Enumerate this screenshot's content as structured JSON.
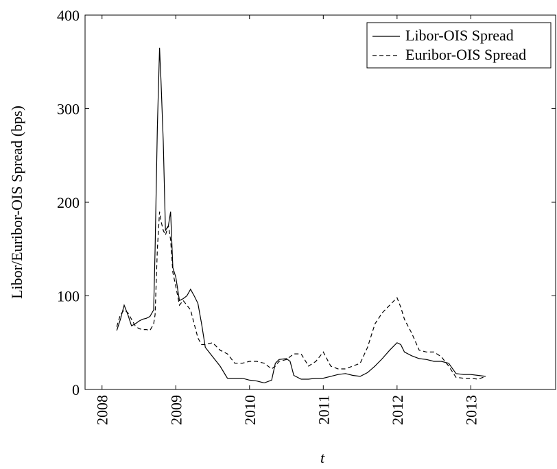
{
  "chart_data": {
    "type": "line",
    "xlabel": "t",
    "ylabel": "Libor/Euribor-OIS Spread (bps)",
    "x": [
      2008.2,
      2008.25,
      2008.3,
      2008.35,
      2008.4,
      2008.45,
      2008.5,
      2008.55,
      2008.6,
      2008.65,
      2008.7,
      2008.72,
      2008.75,
      2008.78,
      2008.8,
      2008.83,
      2008.86,
      2008.9,
      2008.93,
      2008.96,
      2009.0,
      2009.05,
      2009.1,
      2009.15,
      2009.2,
      2009.25,
      2009.3,
      2009.35,
      2009.4,
      2009.5,
      2009.6,
      2009.7,
      2009.8,
      2009.9,
      2010.0,
      2010.1,
      2010.2,
      2010.3,
      2010.35,
      2010.4,
      2010.5,
      2010.55,
      2010.6,
      2010.7,
      2010.8,
      2010.9,
      2011.0,
      2011.1,
      2011.2,
      2011.3,
      2011.4,
      2011.5,
      2011.6,
      2011.7,
      2011.8,
      2011.9,
      2012.0,
      2012.05,
      2012.1,
      2012.2,
      2012.3,
      2012.4,
      2012.5,
      2012.6,
      2012.7,
      2012.8,
      2012.9,
      2013.0,
      2013.1,
      2013.2
    ],
    "series": [
      {
        "name": "Libor-OIS Spread",
        "color": "#000000",
        "dash": "solid",
        "values": [
          63,
          75,
          90,
          80,
          68,
          70,
          73,
          75,
          76,
          78,
          85,
          150,
          280,
          365,
          330,
          265,
          170,
          175,
          190,
          130,
          120,
          95,
          97,
          100,
          107,
          100,
          92,
          70,
          45,
          35,
          25,
          12,
          12,
          12,
          10,
          9,
          7,
          10,
          28,
          32,
          33,
          30,
          15,
          11,
          11,
          12,
          12,
          14,
          16,
          17,
          15,
          14,
          18,
          25,
          33,
          42,
          50,
          48,
          40,
          36,
          33,
          32,
          30,
          30,
          28,
          17,
          16,
          16,
          15,
          14
        ]
      },
      {
        "name": "Euribor-OIS Spread",
        "color": "#000000",
        "dash": "dashed",
        "values": [
          67,
          80,
          85,
          82,
          75,
          68,
          65,
          64,
          64,
          63,
          70,
          80,
          150,
          190,
          180,
          170,
          165,
          175,
          160,
          125,
          110,
          90,
          95,
          90,
          85,
          70,
          55,
          48,
          48,
          50,
          42,
          38,
          28,
          28,
          30,
          30,
          28,
          22,
          25,
          30,
          32,
          35,
          38,
          38,
          25,
          30,
          40,
          25,
          22,
          22,
          25,
          28,
          45,
          70,
          82,
          90,
          98,
          88,
          75,
          60,
          42,
          40,
          40,
          35,
          25,
          13,
          12,
          12,
          11,
          14
        ]
      }
    ],
    "xlim": [
      2007.77,
      2014.15
    ],
    "ylim": [
      0,
      400
    ],
    "xticks": [
      2008,
      2009,
      2010,
      2011,
      2012,
      2013
    ],
    "yticks": [
      0,
      100,
      200,
      300,
      400
    ],
    "legend": "upper right"
  }
}
